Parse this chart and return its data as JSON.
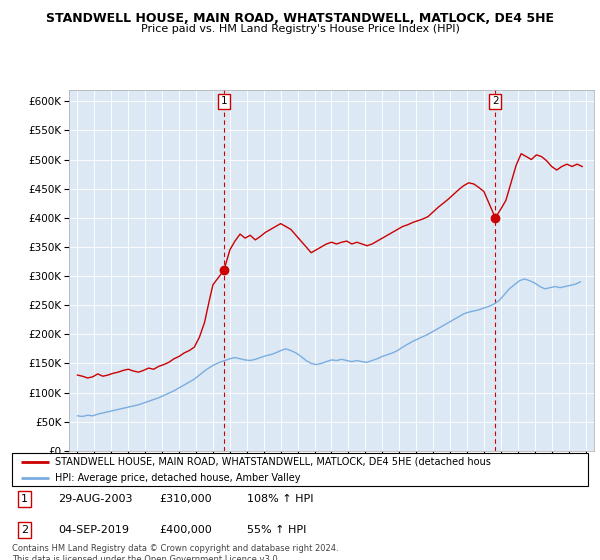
{
  "title": "STANDWELL HOUSE, MAIN ROAD, WHATSTANDWELL, MATLOCK, DE4 5HE",
  "subtitle": "Price paid vs. HM Land Registry's House Price Index (HPI)",
  "red_label": "STANDWELL HOUSE, MAIN ROAD, WHATSTANDWELL, MATLOCK, DE4 5HE (detached hous",
  "blue_label": "HPI: Average price, detached house, Amber Valley",
  "sale1_label": "1",
  "sale1_date": "29-AUG-2003",
  "sale1_price": "£310,000",
  "sale1_pct": "108% ↑ HPI",
  "sale1_year": 2003.65,
  "sale1_value": 310000,
  "sale2_label": "2",
  "sale2_date": "04-SEP-2019",
  "sale2_price": "£400,000",
  "sale2_pct": "55% ↑ HPI",
  "sale2_year": 2019.67,
  "sale2_value": 400000,
  "ylim": [
    0,
    620000
  ],
  "yticks": [
    0,
    50000,
    100000,
    150000,
    200000,
    250000,
    300000,
    350000,
    400000,
    450000,
    500000,
    550000,
    600000
  ],
  "ytick_labels": [
    "£0",
    "£50K",
    "£100K",
    "£150K",
    "£200K",
    "£250K",
    "£300K",
    "£350K",
    "£400K",
    "£450K",
    "£500K",
    "£550K",
    "£600K"
  ],
  "xticks": [
    1995,
    1996,
    1997,
    1998,
    1999,
    2000,
    2001,
    2002,
    2003,
    2004,
    2005,
    2006,
    2007,
    2008,
    2009,
    2010,
    2011,
    2012,
    2013,
    2014,
    2015,
    2016,
    2017,
    2018,
    2019,
    2020,
    2021,
    2022,
    2023,
    2024,
    2025
  ],
  "red_color": "#cc0000",
  "blue_color": "#7aade0",
  "marker_color": "#cc0000",
  "bg_color": "#dce9f5",
  "footer": "Contains HM Land Registry data © Crown copyright and database right 2024.\nThis data is licensed under the Open Government Licence v3.0.",
  "red_x": [
    1995.0,
    1995.3,
    1995.6,
    1995.9,
    1996.2,
    1996.5,
    1996.8,
    1997.1,
    1997.4,
    1997.7,
    1998.0,
    1998.3,
    1998.6,
    1998.9,
    1999.2,
    1999.5,
    1999.8,
    2000.1,
    2000.4,
    2000.7,
    2001.0,
    2001.3,
    2001.6,
    2001.9,
    2002.2,
    2002.5,
    2002.8,
    2003.0,
    2003.65,
    2004.0,
    2004.3,
    2004.6,
    2004.9,
    2005.2,
    2005.5,
    2005.8,
    2006.1,
    2006.4,
    2006.7,
    2007.0,
    2007.3,
    2007.6,
    2007.9,
    2008.2,
    2008.5,
    2008.8,
    2009.1,
    2009.4,
    2009.7,
    2010.0,
    2010.3,
    2010.6,
    2010.9,
    2011.2,
    2011.5,
    2011.8,
    2012.1,
    2012.4,
    2012.7,
    2013.0,
    2013.3,
    2013.6,
    2013.9,
    2014.2,
    2014.5,
    2014.8,
    2015.1,
    2015.4,
    2015.7,
    2016.0,
    2016.3,
    2016.6,
    2016.9,
    2017.2,
    2017.5,
    2017.8,
    2018.1,
    2018.4,
    2018.7,
    2019.0,
    2019.67,
    2020.0,
    2020.3,
    2020.6,
    2020.9,
    2021.2,
    2021.5,
    2021.8,
    2022.1,
    2022.4,
    2022.7,
    2023.0,
    2023.3,
    2023.6,
    2023.9,
    2024.2,
    2024.5,
    2024.8
  ],
  "red_y": [
    130000,
    128000,
    125000,
    127000,
    132000,
    128000,
    130000,
    133000,
    135000,
    138000,
    140000,
    137000,
    135000,
    138000,
    142000,
    140000,
    145000,
    148000,
    152000,
    158000,
    162000,
    168000,
    172000,
    178000,
    195000,
    220000,
    260000,
    285000,
    310000,
    345000,
    360000,
    372000,
    365000,
    370000,
    362000,
    368000,
    375000,
    380000,
    385000,
    390000,
    385000,
    380000,
    370000,
    360000,
    350000,
    340000,
    345000,
    350000,
    355000,
    358000,
    355000,
    358000,
    360000,
    355000,
    358000,
    355000,
    352000,
    355000,
    360000,
    365000,
    370000,
    375000,
    380000,
    385000,
    388000,
    392000,
    395000,
    398000,
    402000,
    410000,
    418000,
    425000,
    432000,
    440000,
    448000,
    455000,
    460000,
    458000,
    452000,
    445000,
    400000,
    415000,
    430000,
    460000,
    490000,
    510000,
    505000,
    500000,
    508000,
    505000,
    498000,
    488000,
    482000,
    488000,
    492000,
    488000,
    492000,
    488000
  ],
  "blue_x": [
    1995.0,
    1995.3,
    1995.6,
    1995.9,
    1996.2,
    1996.5,
    1996.8,
    1997.1,
    1997.4,
    1997.7,
    1998.0,
    1998.3,
    1998.6,
    1998.9,
    1999.2,
    1999.5,
    1999.8,
    2000.1,
    2000.4,
    2000.7,
    2001.0,
    2001.3,
    2001.6,
    2001.9,
    2002.2,
    2002.5,
    2002.8,
    2003.1,
    2003.4,
    2003.7,
    2004.0,
    2004.3,
    2004.6,
    2004.9,
    2005.2,
    2005.5,
    2005.8,
    2006.1,
    2006.4,
    2006.7,
    2007.0,
    2007.3,
    2007.6,
    2007.9,
    2008.2,
    2008.5,
    2008.8,
    2009.1,
    2009.4,
    2009.7,
    2010.0,
    2010.3,
    2010.6,
    2010.9,
    2011.2,
    2011.5,
    2011.8,
    2012.1,
    2012.4,
    2012.7,
    2013.0,
    2013.3,
    2013.6,
    2013.9,
    2014.2,
    2014.5,
    2014.8,
    2015.1,
    2015.4,
    2015.7,
    2016.0,
    2016.3,
    2016.6,
    2016.9,
    2017.2,
    2017.5,
    2017.8,
    2018.1,
    2018.4,
    2018.7,
    2019.0,
    2019.3,
    2019.6,
    2019.9,
    2020.2,
    2020.5,
    2020.8,
    2021.1,
    2021.4,
    2021.7,
    2022.0,
    2022.3,
    2022.6,
    2022.9,
    2023.2,
    2023.5,
    2023.8,
    2024.1,
    2024.4,
    2024.7
  ],
  "blue_y": [
    60000,
    59000,
    61000,
    60000,
    63000,
    65000,
    67000,
    69000,
    71000,
    73000,
    75000,
    77000,
    79000,
    82000,
    85000,
    88000,
    91000,
    95000,
    99000,
    103000,
    108000,
    113000,
    118000,
    123000,
    130000,
    137000,
    143000,
    148000,
    152000,
    155000,
    158000,
    160000,
    158000,
    156000,
    155000,
    157000,
    160000,
    163000,
    165000,
    168000,
    172000,
    175000,
    172000,
    168000,
    162000,
    155000,
    150000,
    148000,
    150000,
    153000,
    156000,
    155000,
    157000,
    155000,
    153000,
    155000,
    153000,
    152000,
    155000,
    158000,
    162000,
    165000,
    168000,
    172000,
    178000,
    183000,
    188000,
    192000,
    196000,
    200000,
    205000,
    210000,
    215000,
    220000,
    225000,
    230000,
    235000,
    238000,
    240000,
    242000,
    245000,
    248000,
    252000,
    258000,
    268000,
    278000,
    285000,
    292000,
    295000,
    292000,
    288000,
    282000,
    278000,
    280000,
    282000,
    280000,
    282000,
    284000,
    286000,
    290000
  ]
}
